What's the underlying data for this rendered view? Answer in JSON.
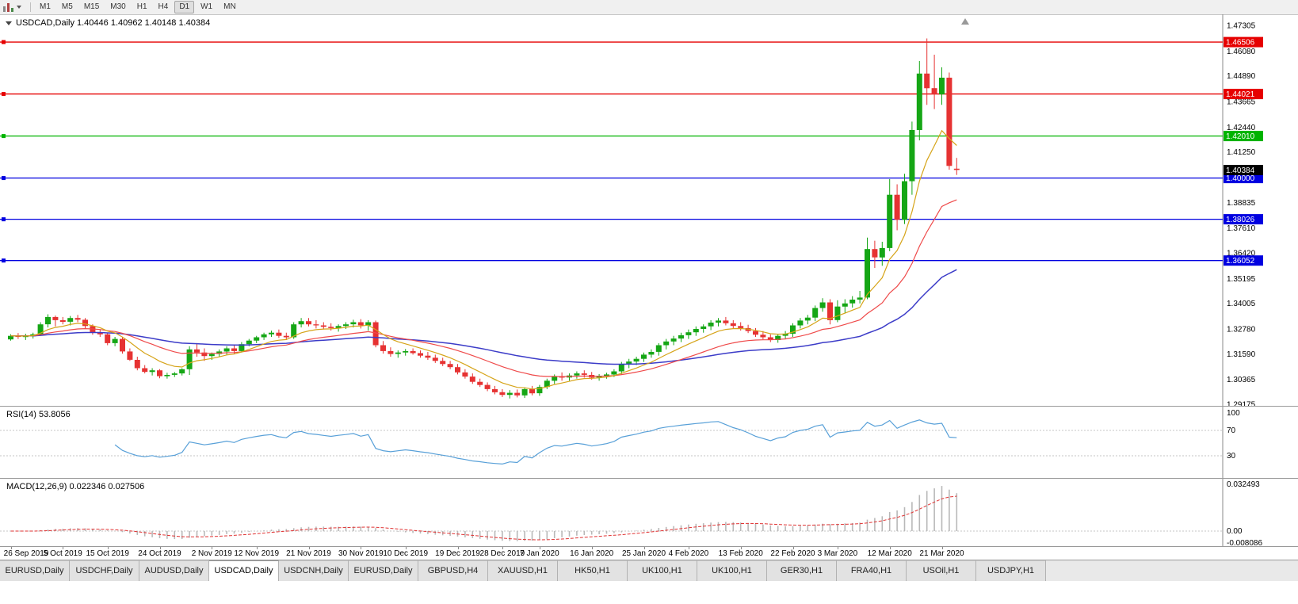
{
  "toolbar": {
    "timeframes": [
      "M1",
      "M5",
      "M15",
      "M30",
      "H1",
      "H4",
      "D1",
      "W1",
      "MN"
    ],
    "active_timeframe": "D1"
  },
  "chart": {
    "type": "candlestick",
    "symbol": "USDCAD",
    "period": "Daily",
    "title_text": "USDCAD,Daily 1.40446 1.40962 1.40148 1.40384",
    "ohlc": {
      "open": "1.40446",
      "high": "1.40962",
      "low": "1.40148",
      "close": "1.40384"
    },
    "price_axis": {
      "min": 1.29175,
      "max": 1.47305,
      "labels": [
        "1.47305",
        "1.46080",
        "1.44890",
        "1.43665",
        "1.42440",
        "1.41250",
        "1.40025",
        "1.38835",
        "1.37610",
        "1.36420",
        "1.35195",
        "1.34005",
        "1.32780",
        "1.31590",
        "1.30365",
        "1.29175"
      ]
    },
    "current_price": {
      "label": "1.40384",
      "price": 1.40384,
      "badge_color": "#000000"
    },
    "hlines": [
      {
        "price": 1.46506,
        "label": "1.46506",
        "color": "#e60000"
      },
      {
        "price": 1.44021,
        "label": "1.44021",
        "color": "#e60000"
      },
      {
        "price": 1.4201,
        "label": "1.42010",
        "color": "#00b300"
      },
      {
        "price": 1.4,
        "label": "1.40000",
        "color": "#0000e0"
      },
      {
        "price": 1.38026,
        "label": "1.38026",
        "color": "#0000e0"
      },
      {
        "price": 1.36052,
        "label": "1.36052",
        "color": "#0000e0"
      }
    ],
    "colors": {
      "bull": "#15a615",
      "bear": "#e63232",
      "ma_fast": "#d6a419",
      "ma_mid": "#ef4a4a",
      "ma_slow": "#3c3cc8",
      "axis_text": "#000000"
    },
    "ma_periods": {
      "fast": 8,
      "mid": 21,
      "slow": 55
    },
    "x_axis_labels": [
      {
        "text": "26 Sep 2019",
        "index": 0
      },
      {
        "text": "5 Oct 2019",
        "index": 7
      },
      {
        "text": "15 Oct 2019",
        "index": 13
      },
      {
        "text": "24 Oct 2019",
        "index": 20
      },
      {
        "text": "2 Nov 2019",
        "index": 27
      },
      {
        "text": "12 Nov 2019",
        "index": 33
      },
      {
        "text": "21 Nov 2019",
        "index": 40
      },
      {
        "text": "30 Nov 2019",
        "index": 47
      },
      {
        "text": "10 Dec 2019",
        "index": 53
      },
      {
        "text": "19 Dec 2019",
        "index": 60
      },
      {
        "text": "28 Dec 2019",
        "index": 66
      },
      {
        "text": "7 Jan 2020",
        "index": 71
      },
      {
        "text": "16 Jan 2020",
        "index": 78
      },
      {
        "text": "25 Jan 2020",
        "index": 85
      },
      {
        "text": "4 Feb 2020",
        "index": 91
      },
      {
        "text": "13 Feb 2020",
        "index": 98
      },
      {
        "text": "22 Feb 2020",
        "index": 105
      },
      {
        "text": "3 Mar 2020",
        "index": 111
      },
      {
        "text": "12 Mar 2020",
        "index": 118
      },
      {
        "text": "21 Mar 2020",
        "index": 125
      }
    ],
    "candles": [
      [
        1.3228,
        1.3252,
        1.3222,
        1.3245
      ],
      [
        1.3245,
        1.3258,
        1.323,
        1.324
      ],
      [
        1.324,
        1.3255,
        1.3225,
        1.3243
      ],
      [
        1.3243,
        1.326,
        1.3232,
        1.3252
      ],
      [
        1.3252,
        1.331,
        1.3245,
        1.33
      ],
      [
        1.33,
        1.3348,
        1.3285,
        1.3335
      ],
      [
        1.3335,
        1.3342,
        1.329,
        1.332
      ],
      [
        1.332,
        1.3335,
        1.33,
        1.3312
      ],
      [
        1.3312,
        1.334,
        1.3295,
        1.333
      ],
      [
        1.333,
        1.3345,
        1.331,
        1.3322
      ],
      [
        1.3322,
        1.333,
        1.328,
        1.3292
      ],
      [
        1.3292,
        1.33,
        1.325,
        1.3262
      ],
      [
        1.3262,
        1.3275,
        1.324,
        1.3252
      ],
      [
        1.3252,
        1.326,
        1.32,
        1.321
      ],
      [
        1.321,
        1.324,
        1.3195,
        1.323
      ],
      [
        1.323,
        1.3238,
        1.316,
        1.317
      ],
      [
        1.317,
        1.3185,
        1.3125,
        1.313
      ],
      [
        1.313,
        1.3145,
        1.308,
        1.309
      ],
      [
        1.309,
        1.3105,
        1.3065,
        1.3072
      ],
      [
        1.3072,
        1.309,
        1.3055,
        1.308
      ],
      [
        1.308,
        1.3085,
        1.3042,
        1.3052
      ],
      [
        1.3052,
        1.3068,
        1.304,
        1.3058
      ],
      [
        1.3058,
        1.3072,
        1.3048,
        1.3065
      ],
      [
        1.3065,
        1.309,
        1.3055,
        1.3085
      ],
      [
        1.3085,
        1.3195,
        1.3058,
        1.318
      ],
      [
        1.318,
        1.321,
        1.3145,
        1.3165
      ],
      [
        1.3165,
        1.3185,
        1.3125,
        1.3148
      ],
      [
        1.3148,
        1.3165,
        1.313,
        1.3158
      ],
      [
        1.3158,
        1.318,
        1.3145,
        1.317
      ],
      [
        1.317,
        1.3195,
        1.3155,
        1.3185
      ],
      [
        1.3185,
        1.32,
        1.316,
        1.3172
      ],
      [
        1.3172,
        1.3215,
        1.3165,
        1.3205
      ],
      [
        1.3205,
        1.323,
        1.3195,
        1.3222
      ],
      [
        1.3222,
        1.3245,
        1.321,
        1.3238
      ],
      [
        1.3238,
        1.326,
        1.3225,
        1.3252
      ],
      [
        1.3252,
        1.327,
        1.324,
        1.326
      ],
      [
        1.326,
        1.3275,
        1.3235,
        1.3245
      ],
      [
        1.3245,
        1.326,
        1.3225,
        1.3238
      ],
      [
        1.3238,
        1.331,
        1.323,
        1.33
      ],
      [
        1.33,
        1.333,
        1.3285,
        1.3315
      ],
      [
        1.3315,
        1.333,
        1.329,
        1.33
      ],
      [
        1.33,
        1.332,
        1.328,
        1.3295
      ],
      [
        1.3295,
        1.331,
        1.3275,
        1.3288
      ],
      [
        1.3288,
        1.3305,
        1.327,
        1.3282
      ],
      [
        1.3282,
        1.33,
        1.3265,
        1.3292
      ],
      [
        1.3292,
        1.331,
        1.3278,
        1.33
      ],
      [
        1.33,
        1.3322,
        1.3285,
        1.331
      ],
      [
        1.331,
        1.3325,
        1.328,
        1.3295
      ],
      [
        1.3295,
        1.332,
        1.327,
        1.331
      ],
      [
        1.331,
        1.3318,
        1.319,
        1.32
      ],
      [
        1.32,
        1.322,
        1.316,
        1.3172
      ],
      [
        1.3172,
        1.319,
        1.3145,
        1.3158
      ],
      [
        1.3158,
        1.3175,
        1.314,
        1.3165
      ],
      [
        1.3165,
        1.3182,
        1.315,
        1.3172
      ],
      [
        1.3172,
        1.3185,
        1.3155,
        1.3162
      ],
      [
        1.3162,
        1.3175,
        1.314,
        1.315
      ],
      [
        1.315,
        1.3168,
        1.313,
        1.314
      ],
      [
        1.314,
        1.3155,
        1.3115,
        1.3125
      ],
      [
        1.3125,
        1.314,
        1.31,
        1.311
      ],
      [
        1.311,
        1.3125,
        1.3085,
        1.3095
      ],
      [
        1.3095,
        1.311,
        1.306,
        1.307
      ],
      [
        1.307,
        1.3085,
        1.304,
        1.305
      ],
      [
        1.305,
        1.3065,
        1.3015,
        1.3025
      ],
      [
        1.3025,
        1.304,
        1.3,
        1.301
      ],
      [
        1.301,
        1.3022,
        1.298,
        1.299
      ],
      [
        1.299,
        1.3005,
        1.2965,
        1.2975
      ],
      [
        1.2975,
        1.299,
        1.2952,
        1.2962
      ],
      [
        1.2962,
        1.2985,
        1.2945,
        1.2972
      ],
      [
        1.2972,
        1.2988,
        1.295,
        1.296
      ],
      [
        1.296,
        1.2998,
        1.2948,
        1.299
      ],
      [
        1.299,
        1.3005,
        1.296,
        1.297
      ],
      [
        1.297,
        1.301,
        1.2958,
        1.3
      ],
      [
        1.3,
        1.304,
        1.299,
        1.303
      ],
      [
        1.303,
        1.306,
        1.3015,
        1.305
      ],
      [
        1.305,
        1.307,
        1.303,
        1.3045
      ],
      [
        1.3045,
        1.3065,
        1.303,
        1.3055
      ],
      [
        1.3055,
        1.3075,
        1.304,
        1.3065
      ],
      [
        1.3065,
        1.308,
        1.3045,
        1.3058
      ],
      [
        1.3058,
        1.3072,
        1.3035,
        1.3045
      ],
      [
        1.3045,
        1.3062,
        1.303,
        1.3052
      ],
      [
        1.3052,
        1.3068,
        1.304,
        1.306
      ],
      [
        1.306,
        1.3085,
        1.3048,
        1.3075
      ],
      [
        1.3075,
        1.312,
        1.3062,
        1.3108
      ],
      [
        1.3108,
        1.3135,
        1.309,
        1.3122
      ],
      [
        1.3122,
        1.3145,
        1.3105,
        1.3135
      ],
      [
        1.3135,
        1.3165,
        1.312,
        1.3155
      ],
      [
        1.3155,
        1.318,
        1.314,
        1.3168
      ],
      [
        1.3168,
        1.321,
        1.315,
        1.32
      ],
      [
        1.32,
        1.323,
        1.318,
        1.3218
      ],
      [
        1.3218,
        1.3245,
        1.32,
        1.3232
      ],
      [
        1.3232,
        1.326,
        1.3215,
        1.3248
      ],
      [
        1.3248,
        1.3275,
        1.323,
        1.3262
      ],
      [
        1.3262,
        1.329,
        1.3245,
        1.3278
      ],
      [
        1.3278,
        1.33,
        1.326,
        1.329
      ],
      [
        1.329,
        1.332,
        1.3272,
        1.3308
      ],
      [
        1.3308,
        1.333,
        1.329,
        1.3318
      ],
      [
        1.3318,
        1.3335,
        1.3295,
        1.3305
      ],
      [
        1.3305,
        1.332,
        1.328,
        1.3292
      ],
      [
        1.3292,
        1.331,
        1.327,
        1.3282
      ],
      [
        1.3282,
        1.3298,
        1.3258,
        1.3268
      ],
      [
        1.3268,
        1.3282,
        1.324,
        1.325
      ],
      [
        1.325,
        1.3268,
        1.3228,
        1.3238
      ],
      [
        1.3238,
        1.3252,
        1.3215,
        1.3225
      ],
      [
        1.3225,
        1.3255,
        1.3212,
        1.3245
      ],
      [
        1.3245,
        1.3268,
        1.323,
        1.3255
      ],
      [
        1.3255,
        1.3305,
        1.324,
        1.3295
      ],
      [
        1.3295,
        1.333,
        1.328,
        1.3318
      ],
      [
        1.3318,
        1.3345,
        1.33,
        1.3332
      ],
      [
        1.3332,
        1.339,
        1.3315,
        1.3378
      ],
      [
        1.3378,
        1.3425,
        1.336,
        1.3405
      ],
      [
        1.3405,
        1.342,
        1.33,
        1.332
      ],
      [
        1.332,
        1.3415,
        1.331,
        1.3385
      ],
      [
        1.3385,
        1.342,
        1.3355,
        1.34
      ],
      [
        1.34,
        1.3435,
        1.338,
        1.3418
      ],
      [
        1.3418,
        1.346,
        1.34,
        1.3428
      ],
      [
        1.3428,
        1.3715,
        1.342,
        1.366
      ],
      [
        1.366,
        1.37,
        1.357,
        1.362
      ],
      [
        1.362,
        1.3695,
        1.358,
        1.3665
      ],
      [
        1.3665,
        1.3995,
        1.365,
        1.392
      ],
      [
        1.392,
        1.397,
        1.375,
        1.38
      ],
      [
        1.38,
        1.402,
        1.378,
        1.3985
      ],
      [
        1.3985,
        1.427,
        1.392,
        1.423
      ],
      [
        1.423,
        1.456,
        1.418,
        1.45
      ],
      [
        1.45,
        1.4668,
        1.435,
        1.443
      ],
      [
        1.443,
        1.459,
        1.433,
        1.44
      ],
      [
        1.44,
        1.453,
        1.435,
        1.448
      ],
      [
        1.448,
        1.4505,
        1.404,
        1.4058
      ],
      [
        1.40446,
        1.40962,
        1.40148,
        1.40384
      ]
    ]
  },
  "rsi": {
    "label_text": "RSI(14) 53.8056",
    "name": "RSI(14)",
    "value": 53.8056,
    "period": 14,
    "axis_labels": [
      "100",
      "70",
      "30"
    ],
    "levels": [
      70,
      30
    ],
    "line_color": "#58a0d8"
  },
  "macd": {
    "label_text": "MACD(12,26,9) 0.022346 0.027506",
    "name": "MACD(12,26,9)",
    "macd_value": 0.022346,
    "signal_value": 0.027506,
    "fast": 12,
    "slow": 26,
    "signal": 9,
    "axis_labels": [
      "0.032493",
      "0.00",
      "-0.008086"
    ],
    "range": {
      "max": 0.032493,
      "min": -0.008086
    },
    "hist_color": "#b8b8b8",
    "signal_color": "#e03232"
  },
  "tabs": {
    "active_index": 3,
    "items": [
      "EURUSD,Daily",
      "USDCHF,Daily",
      "AUDUSD,Daily",
      "USDCAD,Daily",
      "USDCNH,Daily",
      "EURUSD,Daily",
      "GBPUSD,H4",
      "XAUUSD,H1",
      "HK50,H1",
      "UK100,H1",
      "UK100,H1",
      "GER30,H1",
      "FRA40,H1",
      "USOil,H1",
      "USDJPY,H1"
    ]
  }
}
